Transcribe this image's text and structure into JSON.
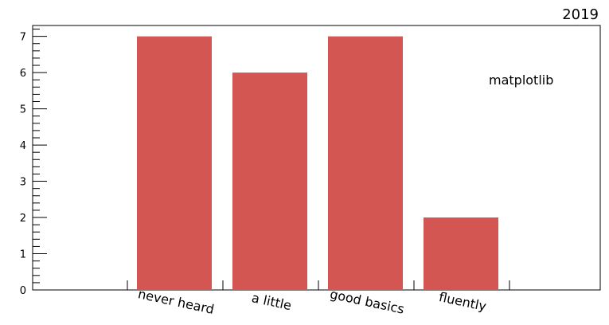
{
  "chart_data": {
    "type": "bar",
    "categories": [
      "never heard",
      "a little",
      "good basics",
      "fluently"
    ],
    "values": [
      7,
      6,
      7,
      2
    ],
    "ylim": [
      0,
      7.3
    ],
    "yticks": [
      0,
      1,
      2,
      3,
      4,
      5,
      6,
      7
    ],
    "bar_color": "#d45653",
    "annotation": "matplotlib",
    "corner_label": "2019",
    "grid": false
  }
}
